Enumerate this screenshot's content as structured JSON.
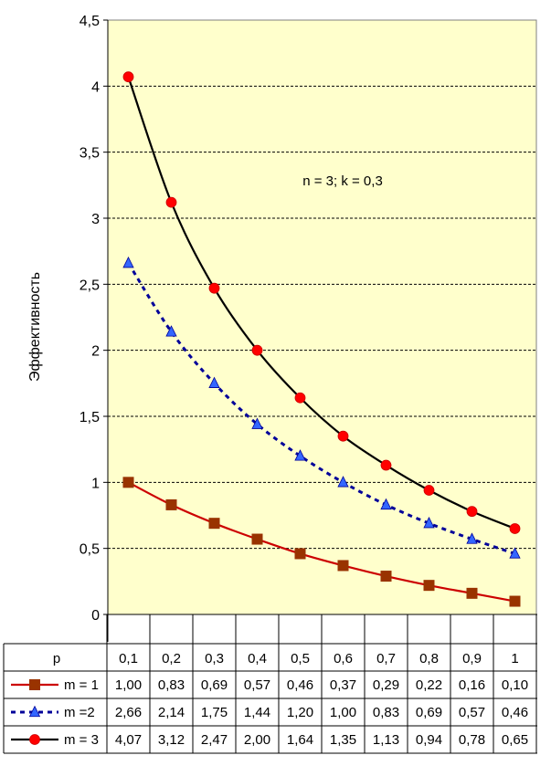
{
  "chart_data": {
    "type": "line",
    "ylabel": "Эффективность",
    "ylim": [
      0,
      4.5
    ],
    "yticks": [
      "0",
      "0,5",
      "1",
      "1,5",
      "2",
      "2,5",
      "3",
      "3,5",
      "4",
      "4,5"
    ],
    "annotation": "n = 3; k = 0,3",
    "x_header": "p",
    "categories": [
      "0,1",
      "0,2",
      "0,3",
      "0,4",
      "0,5",
      "0,6",
      "0,7",
      "0,8",
      "0,9",
      "1"
    ],
    "grid": true,
    "plot_background": "#FFFFCC",
    "series": [
      {
        "name": "m = 1",
        "color": "#CC0000",
        "marker_color": "#993300",
        "marker": "square",
        "line_style": "solid",
        "values": [
          1.0,
          0.83,
          0.69,
          0.57,
          0.46,
          0.37,
          0.29,
          0.22,
          0.16,
          0.1
        ],
        "labels": [
          "1,00",
          "0,83",
          "0,69",
          "0,57",
          "0,46",
          "0,37",
          "0,29",
          "0,22",
          "0,16",
          "0,10"
        ]
      },
      {
        "name": "m =2",
        "color": "#000099",
        "marker_color": "#3366FF",
        "marker": "triangle",
        "line_style": "dashed",
        "values": [
          2.66,
          2.14,
          1.75,
          1.44,
          1.2,
          1.0,
          0.83,
          0.69,
          0.57,
          0.46
        ],
        "labels": [
          "2,66",
          "2,14",
          "1,75",
          "1,44",
          "1,20",
          "1,00",
          "0,83",
          "0,69",
          "0,57",
          "0,46"
        ]
      },
      {
        "name": "m = 3",
        "color": "#000000",
        "marker_color": "#FF0000",
        "marker": "circle",
        "line_style": "solid",
        "values": [
          4.07,
          3.12,
          2.47,
          2.0,
          1.64,
          1.35,
          1.13,
          0.94,
          0.78,
          0.65
        ],
        "labels": [
          "4,07",
          "3,12",
          "2,47",
          "2,00",
          "1,64",
          "1,35",
          "1,13",
          "0,94",
          "0,78",
          "0,65"
        ]
      }
    ]
  }
}
